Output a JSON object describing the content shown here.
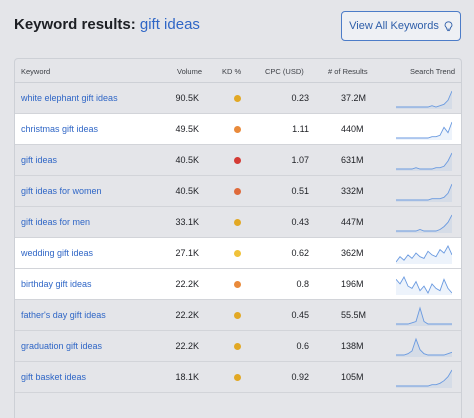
{
  "header": {
    "title_prefix": "Keyword results:",
    "query": "gift ideas",
    "view_all_label": "View All Keywords"
  },
  "columns": {
    "keyword": "Keyword",
    "volume": "Volume",
    "kd": "KD %",
    "cpc": "CPC (USD)",
    "results": "# of Results",
    "trend": "Search Trend"
  },
  "colors": {
    "kd_yellow": "#e2a824",
    "kd_orange": "#e98a3b",
    "kd_red": "#d43b35",
    "kd_redorange": "#df6a3a",
    "link": "#2f66c6",
    "trend_line": "#6a9ae0"
  },
  "rows": [
    {
      "keyword": "white elephant gift ideas",
      "volume": "90.5K",
      "kd_color": "#e2a824",
      "cpc": "0.23",
      "results": "37.2M",
      "highlighted": false,
      "trend": [
        3,
        3,
        3,
        3,
        3,
        3,
        3,
        3,
        3,
        4,
        3,
        4,
        5,
        8,
        15
      ]
    },
    {
      "keyword": "christmas gift ideas",
      "volume": "49.5K",
      "kd_color": "#e98a3b",
      "cpc": "1.11",
      "results": "440M",
      "highlighted": true,
      "trend": [
        2,
        2,
        2,
        2,
        2,
        2,
        2,
        2,
        2,
        3,
        3,
        4,
        10,
        6,
        14
      ]
    },
    {
      "keyword": "gift ideas",
      "volume": "40.5K",
      "kd_color": "#d43b35",
      "cpc": "1.07",
      "results": "631M",
      "highlighted": false,
      "trend": [
        3,
        3,
        3,
        3,
        3,
        4,
        3,
        3,
        3,
        3,
        4,
        4,
        5,
        9,
        15
      ]
    },
    {
      "keyword": "gift ideas for women",
      "volume": "40.5K",
      "kd_color": "#df6a3a",
      "cpc": "0.51",
      "results": "332M",
      "highlighted": false,
      "trend": [
        3,
        3,
        3,
        3,
        3,
        3,
        3,
        3,
        3,
        4,
        4,
        4,
        5,
        8,
        15
      ]
    },
    {
      "keyword": "gift ideas for men",
      "volume": "33.1K",
      "kd_color": "#e2a824",
      "cpc": "0.43",
      "results": "447M",
      "highlighted": false,
      "trend": [
        3,
        3,
        3,
        3,
        3,
        3,
        4,
        3,
        3,
        3,
        3,
        4,
        6,
        9,
        14
      ]
    },
    {
      "keyword": "wedding gift ideas",
      "volume": "27.1K",
      "kd_color": "#f0c23a",
      "cpc": "0.62",
      "results": "362M",
      "highlighted": true,
      "trend": [
        6,
        9,
        7,
        10,
        8,
        11,
        9,
        8,
        12,
        10,
        9,
        13,
        11,
        15,
        10
      ]
    },
    {
      "keyword": "birthday gift ideas",
      "volume": "22.2K",
      "kd_color": "#e98a3b",
      "cpc": "0.8",
      "results": "196M",
      "highlighted": true,
      "trend": [
        12,
        10,
        13,
        9,
        8,
        11,
        7,
        9,
        6,
        10,
        8,
        7,
        12,
        8,
        6
      ]
    },
    {
      "keyword": "father's day gift ideas",
      "volume": "22.2K",
      "kd_color": "#e2a824",
      "cpc": "0.45",
      "results": "55.5M",
      "highlighted": false,
      "trend": [
        2,
        2,
        2,
        2,
        3,
        4,
        15,
        4,
        2,
        2,
        2,
        2,
        2,
        2,
        2
      ]
    },
    {
      "keyword": "graduation gift ideas",
      "volume": "22.2K",
      "kd_color": "#e2a824",
      "cpc": "0.6",
      "results": "138M",
      "highlighted": false,
      "trend": [
        2,
        2,
        2,
        3,
        5,
        14,
        6,
        3,
        2,
        2,
        2,
        2,
        2,
        3,
        4
      ]
    },
    {
      "keyword": "gift basket ideas",
      "volume": "18.1K",
      "kd_color": "#e2a824",
      "cpc": "0.92",
      "results": "105M",
      "highlighted": false,
      "trend": [
        3,
        3,
        3,
        3,
        3,
        3,
        3,
        3,
        3,
        4,
        4,
        5,
        7,
        10,
        15
      ]
    }
  ]
}
